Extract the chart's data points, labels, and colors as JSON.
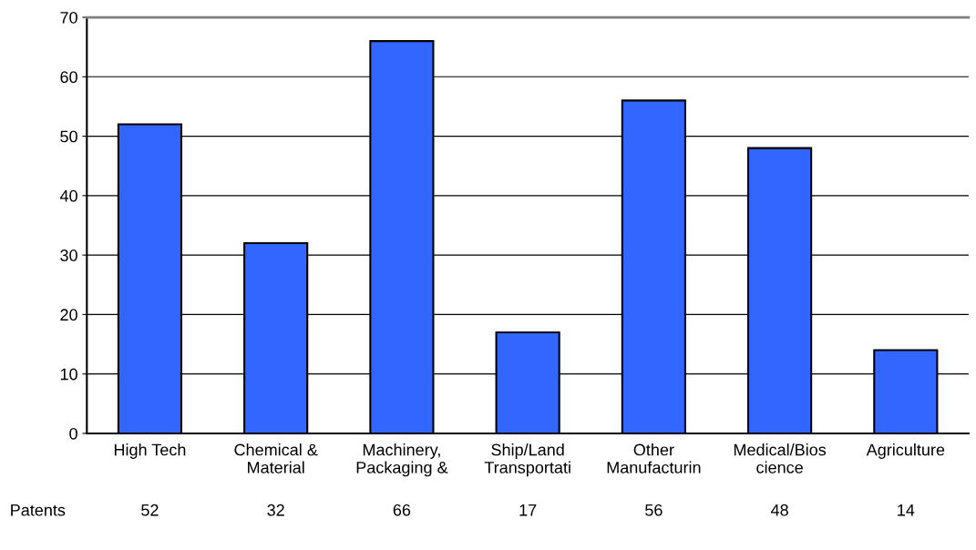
{
  "chart_data": {
    "type": "bar",
    "categories": [
      "High Tech",
      "Chemical &\nMaterial",
      "Machinery,\nPackaging &",
      "Ship/Land\nTransportati",
      "Other\nManufacturin",
      "Medical/Bios\ncience",
      "Agriculture"
    ],
    "series": [
      {
        "name": "Patents",
        "color": "#3366ff",
        "values": [
          52,
          32,
          66,
          17,
          56,
          48,
          14
        ]
      }
    ],
    "ylim": [
      0,
      70
    ],
    "yticks": [
      0,
      10,
      20,
      30,
      40,
      50,
      60,
      70
    ],
    "grid": "y",
    "data_labels": true
  }
}
